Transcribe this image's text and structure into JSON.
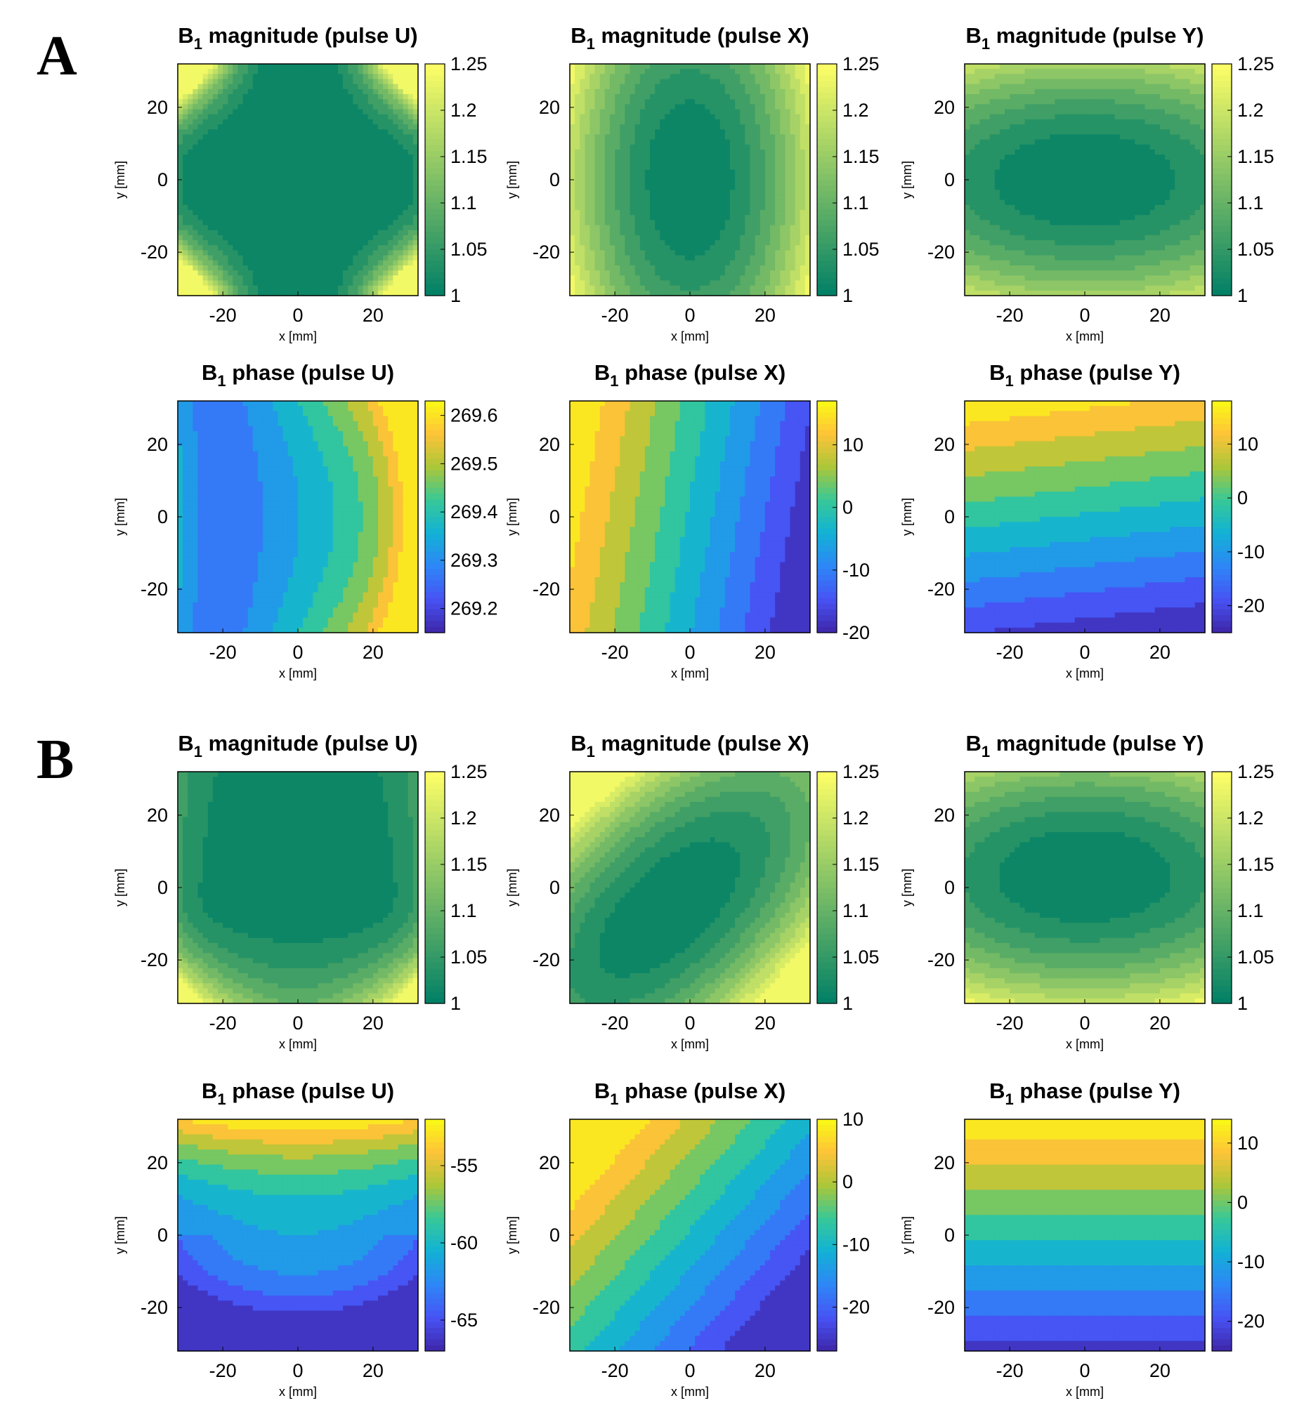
{
  "figure": {
    "panels": [
      {
        "letter": "A"
      },
      {
        "letter": "B"
      }
    ]
  },
  "chart_data": [
    {
      "type": "heatmap",
      "panel": "A",
      "title": "B1 magnitude (pulse U)",
      "xlabel": "x [mm]",
      "ylabel": "y [mm]",
      "xlim": [
        -32,
        32
      ],
      "ylim": [
        -32,
        32
      ],
      "xticks": [
        -20,
        0,
        20
      ],
      "yticks": [
        -20,
        0,
        20
      ],
      "colorbar": {
        "colormap": "summer",
        "range": [
          1,
          1.25
        ],
        "ticks": [
          1,
          1.05,
          1.1,
          1.15,
          1.2,
          1.25
        ]
      }
    },
    {
      "type": "heatmap",
      "panel": "A",
      "title": "B1 magnitude (pulse X)",
      "xlabel": "x [mm]",
      "ylabel": "y [mm]",
      "xlim": [
        -32,
        32
      ],
      "ylim": [
        -32,
        32
      ],
      "xticks": [
        -20,
        0,
        20
      ],
      "yticks": [
        -20,
        0,
        20
      ],
      "colorbar": {
        "colormap": "summer",
        "range": [
          1,
          1.25
        ],
        "ticks": [
          1,
          1.05,
          1.1,
          1.15,
          1.2,
          1.25
        ]
      }
    },
    {
      "type": "heatmap",
      "panel": "A",
      "title": "B1 magnitude (pulse Y)",
      "xlabel": "x [mm]",
      "ylabel": "y [mm]",
      "xlim": [
        -32,
        32
      ],
      "ylim": [
        -32,
        32
      ],
      "xticks": [
        -20,
        0,
        20
      ],
      "yticks": [
        -20,
        0,
        20
      ],
      "colorbar": {
        "colormap": "summer",
        "range": [
          1,
          1.25
        ],
        "ticks": [
          1,
          1.05,
          1.1,
          1.15,
          1.2,
          1.25
        ]
      }
    },
    {
      "type": "heatmap",
      "panel": "A",
      "title": "B1 phase (pulse U)",
      "xlabel": "x [mm]",
      "ylabel": "y [mm]",
      "xlim": [
        -32,
        32
      ],
      "ylim": [
        -32,
        32
      ],
      "xticks": [
        -20,
        0,
        20
      ],
      "yticks": [
        -20,
        0,
        20
      ],
      "colorbar": {
        "colormap": "parula",
        "range": [
          269.15,
          269.63
        ],
        "ticks": [
          269.2,
          269.3,
          269.4,
          269.5,
          269.6
        ]
      }
    },
    {
      "type": "heatmap",
      "panel": "A",
      "title": "B1 phase (pulse X)",
      "xlabel": "x [mm]",
      "ylabel": "y [mm]",
      "xlim": [
        -32,
        32
      ],
      "ylim": [
        -32,
        32
      ],
      "xticks": [
        -20,
        0,
        20
      ],
      "yticks": [
        -20,
        0,
        20
      ],
      "colorbar": {
        "colormap": "parula",
        "range": [
          -20,
          17
        ],
        "ticks": [
          -20,
          -10,
          0,
          10
        ]
      }
    },
    {
      "type": "heatmap",
      "panel": "A",
      "title": "B1 phase (pulse Y)",
      "xlabel": "x [mm]",
      "ylabel": "y [mm]",
      "xlim": [
        -32,
        32
      ],
      "ylim": [
        -32,
        32
      ],
      "xticks": [
        -20,
        0,
        20
      ],
      "yticks": [
        -20,
        0,
        20
      ],
      "colorbar": {
        "colormap": "parula",
        "range": [
          -25,
          18
        ],
        "ticks": [
          -20,
          -10,
          0,
          10
        ]
      }
    },
    {
      "type": "heatmap",
      "panel": "B",
      "title": "B1 magnitude (pulse U)",
      "xlabel": "x [mm]",
      "ylabel": "y [mm]",
      "xlim": [
        -32,
        32
      ],
      "ylim": [
        -32,
        32
      ],
      "xticks": [
        -20,
        0,
        20
      ],
      "yticks": [
        -20,
        0,
        20
      ],
      "colorbar": {
        "colormap": "summer",
        "range": [
          1,
          1.25
        ],
        "ticks": [
          1,
          1.05,
          1.1,
          1.15,
          1.2,
          1.25
        ]
      }
    },
    {
      "type": "heatmap",
      "panel": "B",
      "title": "B1 magnitude (pulse X)",
      "xlabel": "x [mm]",
      "ylabel": "y [mm]",
      "xlim": [
        -32,
        32
      ],
      "ylim": [
        -32,
        32
      ],
      "xticks": [
        -20,
        0,
        20
      ],
      "yticks": [
        -20,
        0,
        20
      ],
      "colorbar": {
        "colormap": "summer",
        "range": [
          1,
          1.25
        ],
        "ticks": [
          1,
          1.05,
          1.1,
          1.15,
          1.2,
          1.25
        ]
      }
    },
    {
      "type": "heatmap",
      "panel": "B",
      "title": "B1 magnitude (pulse Y)",
      "xlabel": "x [mm]",
      "ylabel": "y [mm]",
      "xlim": [
        -32,
        32
      ],
      "ylim": [
        -32,
        32
      ],
      "xticks": [
        -20,
        0,
        20
      ],
      "yticks": [
        -20,
        0,
        20
      ],
      "colorbar": {
        "colormap": "summer",
        "range": [
          1,
          1.25
        ],
        "ticks": [
          1,
          1.05,
          1.1,
          1.15,
          1.2,
          1.25
        ]
      }
    },
    {
      "type": "heatmap",
      "panel": "B",
      "title": "B1 phase (pulse U)",
      "xlabel": "x [mm]",
      "ylabel": "y [mm]",
      "xlim": [
        -32,
        32
      ],
      "ylim": [
        -32,
        32
      ],
      "xticks": [
        -20,
        0,
        20
      ],
      "yticks": [
        -20,
        0,
        20
      ],
      "colorbar": {
        "colormap": "parula",
        "range": [
          -67,
          -52
        ],
        "ticks": [
          -55,
          -60,
          -65
        ]
      }
    },
    {
      "type": "heatmap",
      "panel": "B",
      "title": "B1 phase (pulse X)",
      "xlabel": "x [mm]",
      "ylabel": "y [mm]",
      "xlim": [
        -32,
        32
      ],
      "ylim": [
        -32,
        32
      ],
      "xticks": [
        -20,
        0,
        20
      ],
      "yticks": [
        -20,
        0,
        20
      ],
      "colorbar": {
        "colormap": "parula",
        "range": [
          -27,
          10
        ],
        "ticks": [
          10,
          0,
          -10,
          -20
        ]
      }
    },
    {
      "type": "heatmap",
      "panel": "B",
      "title": "B1 phase (pulse Y)",
      "xlabel": "x [mm]",
      "ylabel": "y [mm]",
      "xlim": [
        -32,
        32
      ],
      "ylim": [
        -32,
        32
      ],
      "xticks": [
        -20,
        0,
        20
      ],
      "yticks": [
        -20,
        0,
        20
      ],
      "colorbar": {
        "colormap": "parula",
        "range": [
          -25,
          14
        ],
        "ticks": [
          10,
          0,
          -10,
          -20
        ]
      }
    }
  ]
}
